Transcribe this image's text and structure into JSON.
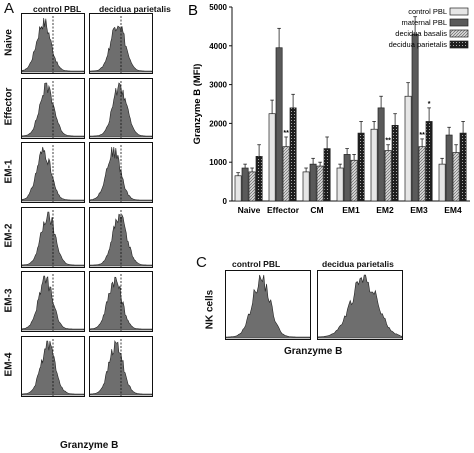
{
  "panels": {
    "A": {
      "letter": "A",
      "columns": [
        "control  PBL",
        "decidua parietalis"
      ],
      "rows": [
        "Naive",
        "Effector",
        "EM-1",
        "EM-2",
        "EM-3",
        "EM-4"
      ],
      "xlabel": "Granzyme B"
    },
    "C": {
      "letter": "C",
      "columns": [
        "control  PBL",
        "decidua parietalis"
      ],
      "ylabel": "NK cells",
      "xlabel": "Granzyme B"
    }
  },
  "chart_data": {
    "letter": "B",
    "type": "bar",
    "ylabel": "Granzyme B (MFI)",
    "ylim": [
      0,
      5000
    ],
    "yticks": [
      "0",
      "1000",
      "2000",
      "3000",
      "4000",
      "5000"
    ],
    "categories": [
      "Naive",
      "Effector",
      "CM",
      "EM1",
      "EM2",
      "EM3",
      "EM4"
    ],
    "legend_position": "top-right",
    "series": [
      {
        "name": "control PBL",
        "color": "#e8e8e8",
        "values": [
          650,
          2250,
          750,
          850,
          1850,
          2700,
          950
        ],
        "errors": [
          80,
          350,
          100,
          100,
          200,
          350,
          150
        ]
      },
      {
        "name": "maternal PBL",
        "color": "#555555",
        "values": [
          850,
          3950,
          950,
          1200,
          2400,
          4300,
          1700
        ],
        "errors": [
          100,
          500,
          150,
          150,
          300,
          450,
          200
        ]
      },
      {
        "name": "decidua basalis",
        "color": "#bbbbbb",
        "values": [
          750,
          1400,
          900,
          1050,
          1300,
          1400,
          1250
        ],
        "errors": [
          100,
          250,
          100,
          150,
          150,
          200,
          200
        ]
      },
      {
        "name": "decidua parietalis",
        "color": "#222222",
        "values": [
          1150,
          2400,
          1350,
          1750,
          1950,
          2050,
          1750
        ],
        "errors": [
          300,
          350,
          300,
          300,
          300,
          350,
          300
        ]
      }
    ],
    "annotations": [
      {
        "category": "Effector",
        "series": "decidua basalis",
        "text": "**"
      },
      {
        "category": "EM2",
        "series": "decidua basalis",
        "text": "**"
      },
      {
        "category": "EM3",
        "series": "decidua basalis",
        "text": "**"
      },
      {
        "category": "EM3",
        "series": "decidua parietalis",
        "text": "*"
      }
    ]
  }
}
